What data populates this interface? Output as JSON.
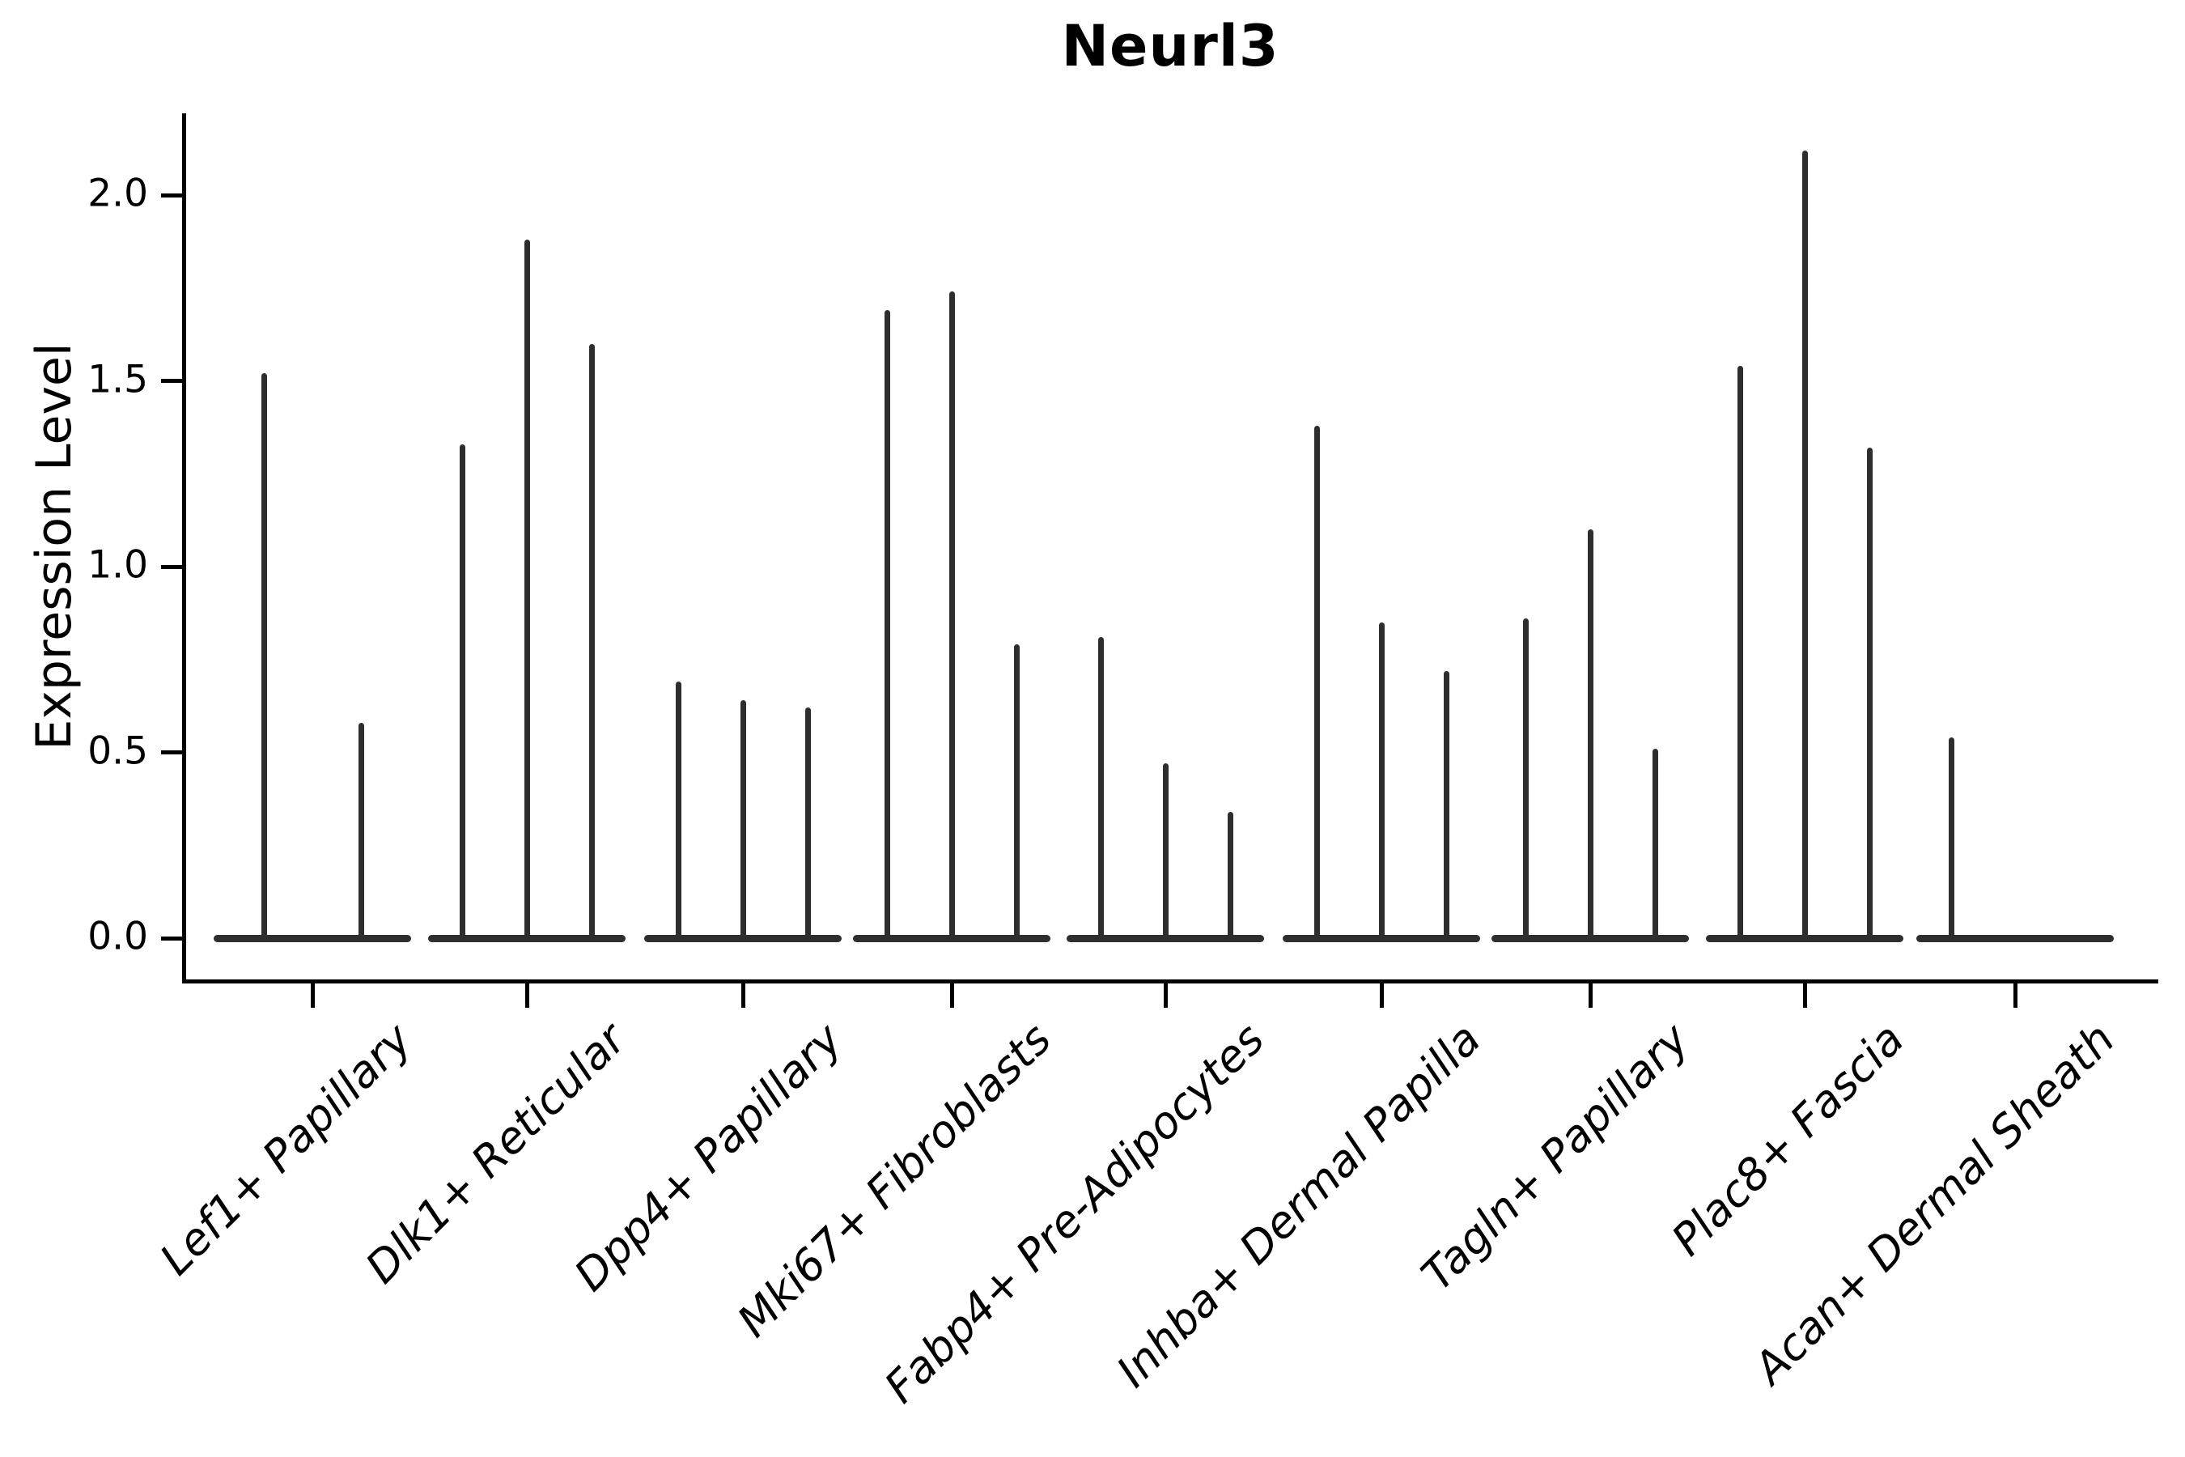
{
  "title": "Neurl3",
  "axes": {
    "ylabel": "Expression Level",
    "ytick_labels": [
      "0.0",
      "0.5",
      "1.0",
      "1.5",
      "2.0"
    ],
    "ytick_values": [
      0.0,
      0.5,
      1.0,
      1.5,
      2.0
    ]
  },
  "colors": {
    "ink": "#000000",
    "violin": "#2e2e2e",
    "background": "#ffffff"
  },
  "chart_data": {
    "type": "violin",
    "title": "Neurl3",
    "xlabel": "",
    "ylabel": "Expression Level",
    "ylim": [
      -0.11,
      2.22
    ],
    "yticks": [
      0.0,
      0.5,
      1.0,
      1.5,
      2.0
    ],
    "grid": false,
    "legend": "none",
    "description": "Needle-thin violins (most values at 0) with flat bases at y=0; max expression per violin listed below",
    "categories": [
      "Lef1+ Papillary",
      "Dlk1+ Reticular",
      "Dpp4+ Papillary",
      "Mki67+ Fibroblasts",
      "Fabp4+ Pre-Adipocytes",
      "Inhba+ Dermal Papilla",
      "Tagln+ Papillary",
      "Plac8+ Fascia",
      "Acan+ Dermal Sheath"
    ],
    "groups": [
      {
        "category": "Lef1+ Papillary",
        "center_x": 386,
        "base_half_width": 122,
        "violins": [
          {
            "offset": -60,
            "max": 1.52
          },
          {
            "offset": 60,
            "max": 0.58
          }
        ]
      },
      {
        "category": "Dlk1+ Reticular",
        "center_x": 651,
        "base_half_width": 122,
        "violins": [
          {
            "offset": -80,
            "max": 1.33
          },
          {
            "offset": 0,
            "max": 1.88
          },
          {
            "offset": 80,
            "max": 1.6
          }
        ]
      },
      {
        "category": "Dpp4+ Papillary",
        "center_x": 918,
        "base_half_width": 122,
        "violins": [
          {
            "offset": -80,
            "max": 0.69
          },
          {
            "offset": 0,
            "max": 0.64
          },
          {
            "offset": 80,
            "max": 0.62
          }
        ]
      },
      {
        "category": "Mki67+ Fibroblasts",
        "center_x": 1176,
        "base_half_width": 122,
        "violins": [
          {
            "offset": -80,
            "max": 1.69
          },
          {
            "offset": 0,
            "max": 1.74
          },
          {
            "offset": 80,
            "max": 0.79
          }
        ]
      },
      {
        "category": "Fabp4+ Pre-Adipocytes",
        "center_x": 1440,
        "base_half_width": 122,
        "violins": [
          {
            "offset": -80,
            "max": 0.81
          },
          {
            "offset": 0,
            "max": 0.47
          },
          {
            "offset": 80,
            "max": 0.34
          }
        ]
      },
      {
        "category": "Inhba+ Dermal Papilla",
        "center_x": 1707,
        "base_half_width": 122,
        "violins": [
          {
            "offset": -80,
            "max": 1.38
          },
          {
            "offset": 0,
            "max": 0.85
          },
          {
            "offset": 80,
            "max": 0.72
          }
        ]
      },
      {
        "category": "Tagln+ Papillary",
        "center_x": 1965,
        "base_half_width": 122,
        "violins": [
          {
            "offset": -80,
            "max": 0.86
          },
          {
            "offset": 0,
            "max": 1.1
          },
          {
            "offset": 80,
            "max": 0.51
          }
        ]
      },
      {
        "category": "Plac8+ Fascia",
        "center_x": 2230,
        "base_half_width": 122,
        "violins": [
          {
            "offset": -80,
            "max": 1.54
          },
          {
            "offset": 0,
            "max": 2.12
          },
          {
            "offset": 80,
            "max": 1.32
          }
        ]
      },
      {
        "category": "Acan+ Dermal Sheath",
        "center_x": 2490,
        "base_half_width": 122,
        "violins": [
          {
            "offset": -79,
            "max": 0.54
          },
          {
            "offset": 0,
            "max": 0.0
          },
          {
            "offset": 79,
            "max": 0.0
          }
        ]
      }
    ]
  }
}
